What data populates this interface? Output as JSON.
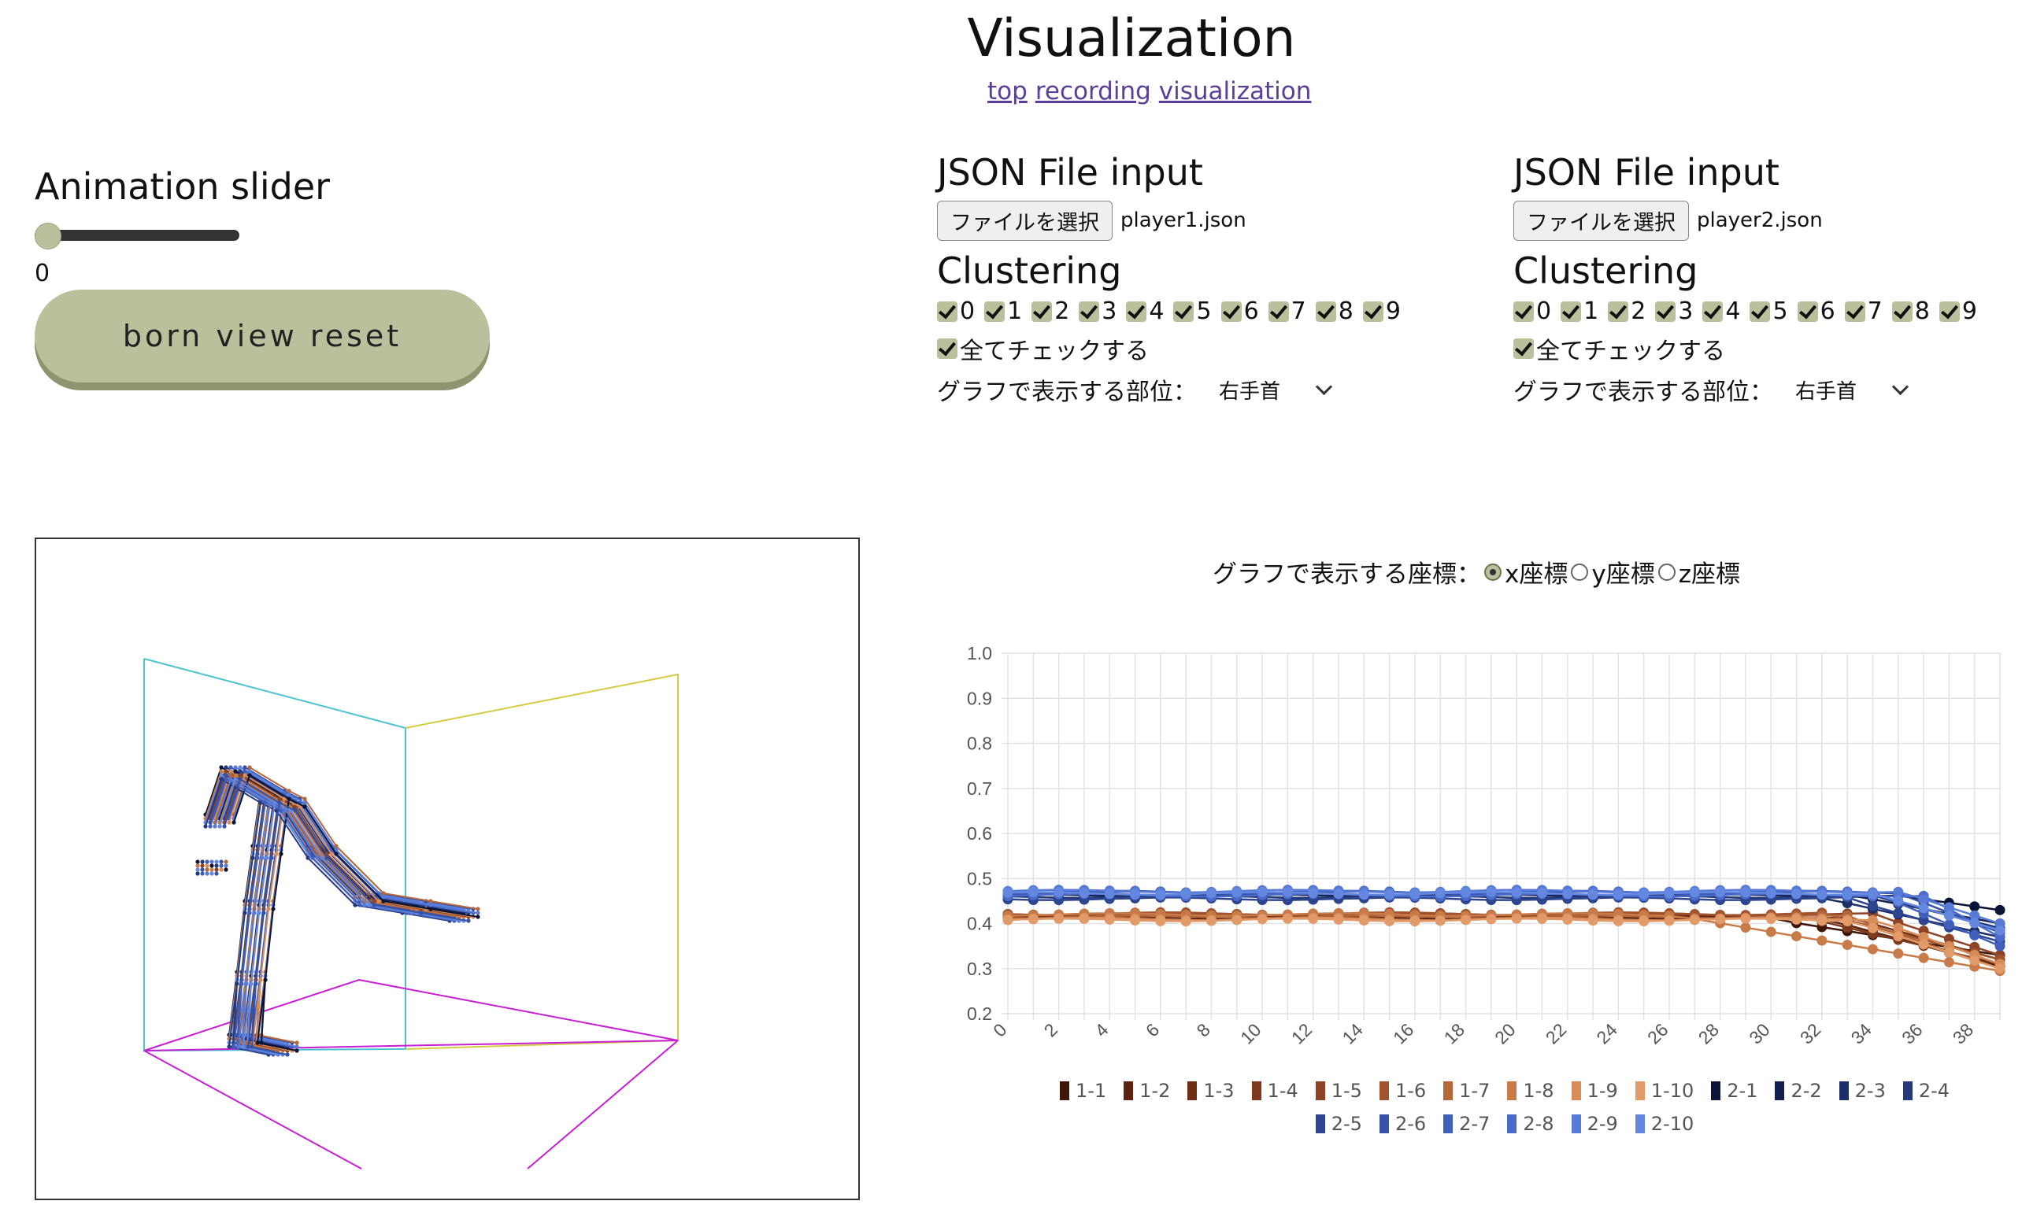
{
  "page": {
    "title": "Visualization",
    "nav": [
      "top",
      "recording",
      "visualization"
    ]
  },
  "animation": {
    "heading": "Animation slider",
    "value": "0",
    "slider_fraction": 0,
    "reset_label": "born view reset"
  },
  "players": [
    {
      "file_heading": "JSON File input",
      "file_button": "ファイルを選択",
      "file_name": "player1.json",
      "clustering_heading": "Clustering",
      "clusters": [
        "0",
        "1",
        "2",
        "3",
        "4",
        "5",
        "6",
        "7",
        "8",
        "9"
      ],
      "check_all_label": "全てチェックする",
      "part_label": "グラフで表示する部位：",
      "part_value": "右手首"
    },
    {
      "file_heading": "JSON File input",
      "file_button": "ファイルを選択",
      "file_name": "player2.json",
      "clustering_heading": "Clustering",
      "clusters": [
        "0",
        "1",
        "2",
        "3",
        "4",
        "5",
        "6",
        "7",
        "8",
        "9"
      ],
      "check_all_label": "全てチェックする",
      "part_label": "グラフで表示する部位：",
      "part_value": "右手首"
    }
  ],
  "axis_select": {
    "label": "グラフで表示する座標：",
    "options": [
      "x座標",
      "y座標",
      "z座標"
    ],
    "selected": "x座標"
  },
  "colors": {
    "accent": "#b8c09c",
    "accent_dark": "#8d946f",
    "link": "#5a3f9a",
    "cyan_plane": "#4ec3d0",
    "yellow_plane": "#d4cc40",
    "magenta_plane": "#c81ed4"
  },
  "chart_data": {
    "type": "line",
    "ylim": [
      0.2,
      1.0
    ],
    "yticks": [
      "1.0",
      "0.9",
      "0.8",
      "0.7",
      "0.6",
      "0.5",
      "0.4",
      "0.3",
      "0.2"
    ],
    "xlim": [
      0,
      39
    ],
    "xticks": [
      "0",
      "2",
      "4",
      "6",
      "8",
      "10",
      "12",
      "14",
      "16",
      "18",
      "20",
      "22",
      "24",
      "26",
      "28",
      "30",
      "32",
      "34",
      "36",
      "38"
    ],
    "series": [
      {
        "name": "1-1",
        "color": "#3d1608",
        "base": 0.41,
        "end": 0.33,
        "drop_start": 30
      },
      {
        "name": "1-2",
        "color": "#5a2410",
        "base": 0.412,
        "end": 0.305,
        "drop_start": 32
      },
      {
        "name": "1-3",
        "color": "#6d2e14",
        "base": 0.415,
        "end": 0.32,
        "drop_start": 33
      },
      {
        "name": "1-4",
        "color": "#7e3a1c",
        "base": 0.418,
        "end": 0.31,
        "drop_start": 31
      },
      {
        "name": "1-5",
        "color": "#8e4424",
        "base": 0.42,
        "end": 0.33,
        "drop_start": 34
      },
      {
        "name": "1-6",
        "color": "#a2542e",
        "base": 0.422,
        "end": 0.32,
        "drop_start": 32
      },
      {
        "name": "1-7",
        "color": "#b5663a",
        "base": 0.415,
        "end": 0.3,
        "drop_start": 33
      },
      {
        "name": "1-8",
        "color": "#c87a48",
        "base": 0.42,
        "end": 0.295,
        "drop_start": 26
      },
      {
        "name": "1-9",
        "color": "#d88c5a",
        "base": 0.41,
        "end": 0.31,
        "drop_start": 34
      },
      {
        "name": "1-10",
        "color": "#e19a68",
        "base": 0.408,
        "end": 0.3,
        "drop_start": 33
      },
      {
        "name": "2-1",
        "color": "#0b1436",
        "base": 0.462,
        "end": 0.43,
        "drop_start": 35
      },
      {
        "name": "2-2",
        "color": "#13204f",
        "base": 0.465,
        "end": 0.4,
        "drop_start": 33
      },
      {
        "name": "2-3",
        "color": "#1c2e66",
        "base": 0.458,
        "end": 0.37,
        "drop_start": 32
      },
      {
        "name": "2-4",
        "color": "#24397a",
        "base": 0.46,
        "end": 0.39,
        "drop_start": 34
      },
      {
        "name": "2-5",
        "color": "#2d4590",
        "base": 0.455,
        "end": 0.36,
        "drop_start": 33
      },
      {
        "name": "2-6",
        "color": "#3652a6",
        "base": 0.468,
        "end": 0.38,
        "drop_start": 35
      },
      {
        "name": "2-7",
        "color": "#3f5fbb",
        "base": 0.47,
        "end": 0.35,
        "drop_start": 34
      },
      {
        "name": "2-8",
        "color": "#4a6bcc",
        "base": 0.463,
        "end": 0.37,
        "drop_start": 36
      },
      {
        "name": "2-9",
        "color": "#5779d8",
        "base": 0.472,
        "end": 0.4,
        "drop_start": 35
      },
      {
        "name": "2-10",
        "color": "#6487e0",
        "base": 0.467,
        "end": 0.385,
        "drop_start": 34
      }
    ]
  }
}
